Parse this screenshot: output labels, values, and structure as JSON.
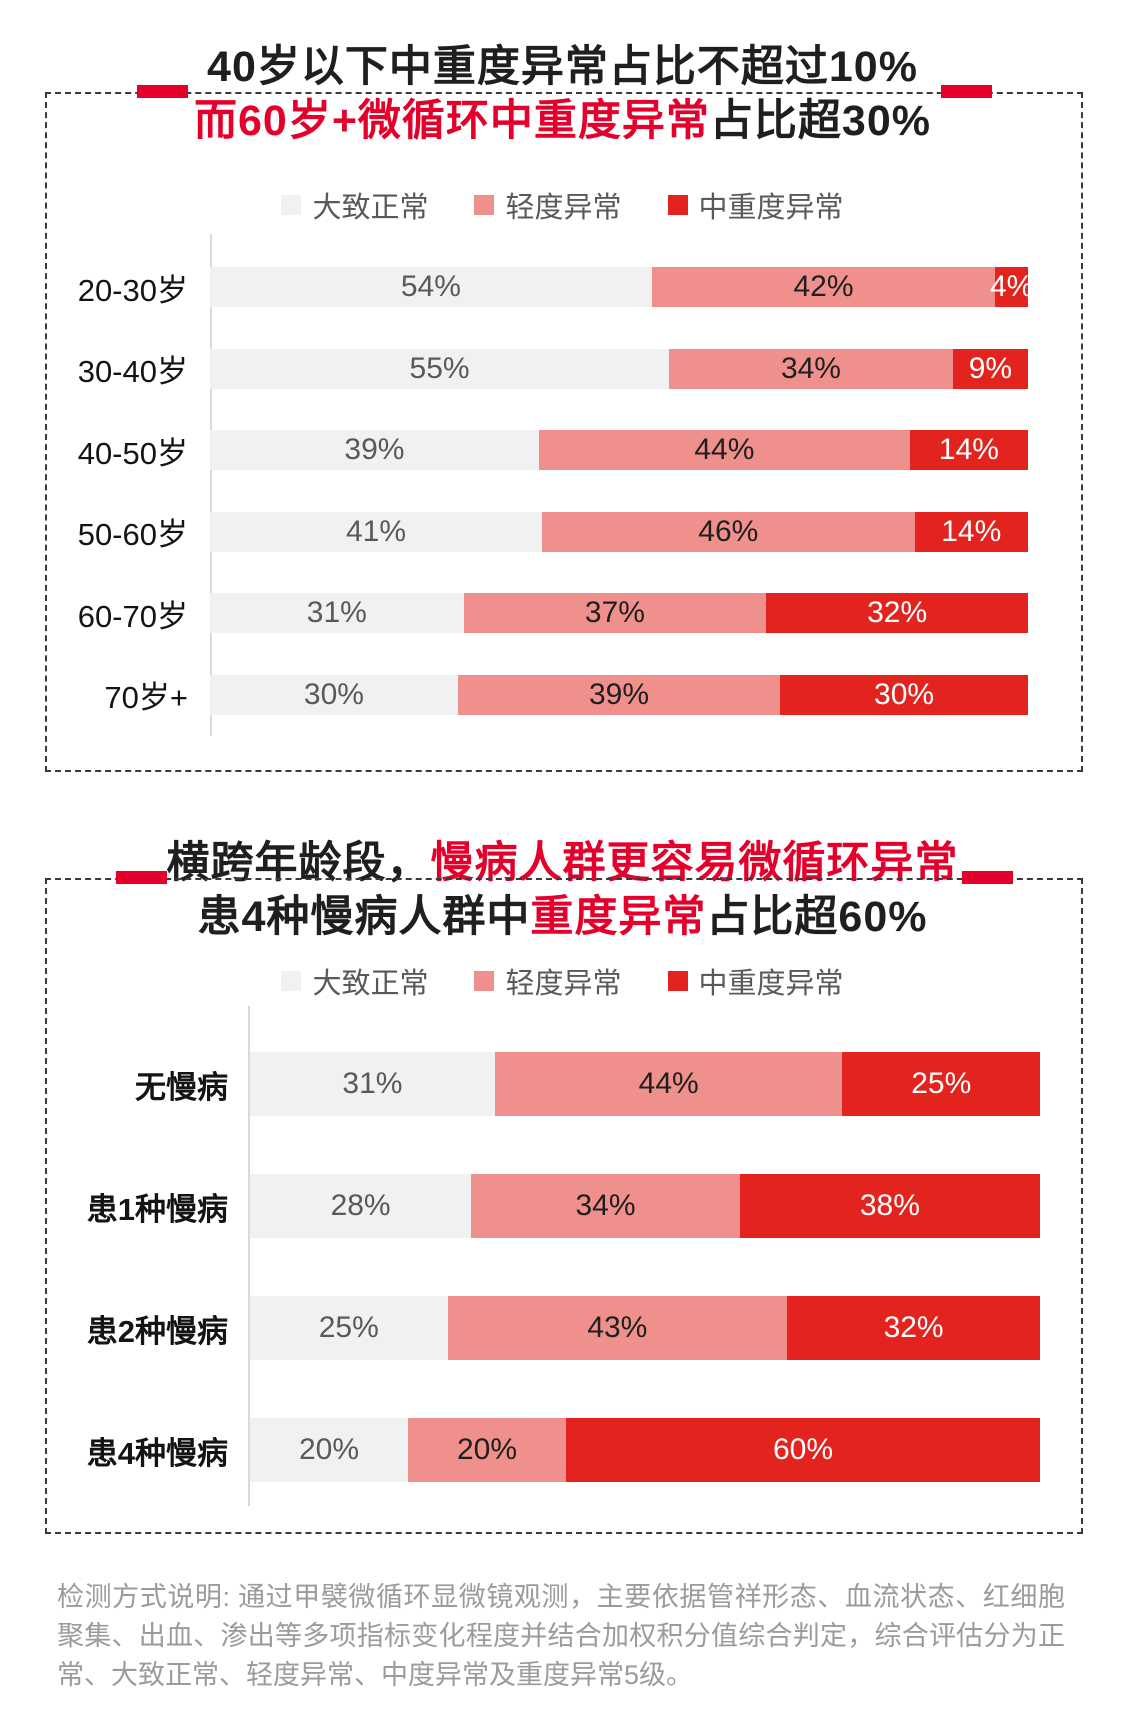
{
  "colors": {
    "accent_red": "#e4002b",
    "normal": "#f1f1f1",
    "mild": "#f0908c",
    "severe": "#e2231e"
  },
  "section1": {
    "title_line1": "40岁以下中重度异常占比不超过10%",
    "title_line2_red": "而60岁+微循环中重度异常",
    "title_line2_black": "占比超30%"
  },
  "section2": {
    "title_line1_black": "横跨年龄段，",
    "title_line1_red": "慢病人群更容易微循环异常",
    "title_line2_black1": "患4种慢病人群中",
    "title_line2_red": "重度异常",
    "title_line2_black2": "占比超60%"
  },
  "chart_data": [
    {
      "type": "bar",
      "stacked": true,
      "orientation": "horizontal",
      "title": "40岁以下中重度异常占比不超过10%，而60岁+微循环中重度异常占比超30%",
      "unit": "%",
      "legend_position": "top",
      "categories": [
        "20-30岁",
        "30-40岁",
        "40-50岁",
        "50-60岁",
        "60-70岁",
        "70岁+"
      ],
      "series": [
        {
          "name": "大致正常",
          "key": "normal",
          "color": "#f1f1f1",
          "values": [
            54,
            55,
            39,
            41,
            31,
            30
          ]
        },
        {
          "name": "轻度异常",
          "key": "mild",
          "color": "#f0908c",
          "values": [
            42,
            34,
            44,
            46,
            37,
            39
          ]
        },
        {
          "name": "中重度异常",
          "key": "severe",
          "color": "#e2231e",
          "values": [
            4,
            9,
            14,
            14,
            32,
            30
          ]
        }
      ]
    },
    {
      "type": "bar",
      "stacked": true,
      "orientation": "horizontal",
      "title": "横跨年龄段，慢病人群更容易微循环异常，患4种慢病人群中重度异常占比超60%",
      "unit": "%",
      "legend_position": "top",
      "categories": [
        "无慢病",
        "患1种慢病",
        "患2种慢病",
        "患4种慢病"
      ],
      "series": [
        {
          "name": "大致正常",
          "key": "normal",
          "color": "#f1f1f1",
          "values": [
            31,
            28,
            25,
            20
          ]
        },
        {
          "name": "轻度异常",
          "key": "mild",
          "color": "#f0908c",
          "values": [
            44,
            34,
            43,
            20
          ]
        },
        {
          "name": "中重度异常",
          "key": "severe",
          "color": "#e2231e",
          "values": [
            25,
            38,
            32,
            60
          ]
        }
      ]
    }
  ],
  "footer": {
    "note": "检测方式说明: 通过甲襞微循环显微镜观测，主要依据管祥形态、血流状态、红细胞聚集、出血、渗出等多项指标变化程度并结合加权积分值综合判定，综合评估分为正常、大致正常、轻度异常、中度异常及重度异常5级。"
  }
}
